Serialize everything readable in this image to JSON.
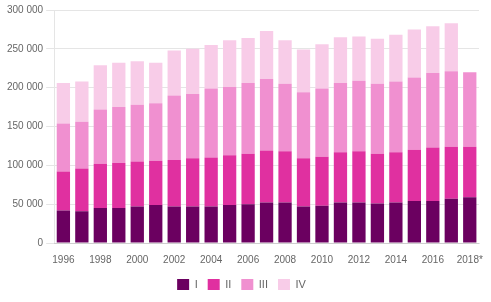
{
  "chart_data": {
    "type": "bar",
    "stacked": true,
    "categories": [
      "1996",
      null,
      "1998",
      null,
      "2000",
      null,
      "2002",
      null,
      "2004",
      null,
      "2006",
      null,
      "2008",
      null,
      "2010",
      null,
      "2012",
      null,
      "2014",
      null,
      "2016",
      null,
      "2018*"
    ],
    "series": [
      {
        "name": "I",
        "color": "#6b0060",
        "values": [
          42000,
          41000,
          45000,
          45000,
          47000,
          49000,
          47000,
          47000,
          47000,
          49000,
          50000,
          52000,
          52000,
          47000,
          48000,
          52000,
          52000,
          51000,
          52000,
          54000,
          54000,
          57000,
          59000
        ]
      },
      {
        "name": "II",
        "color": "#e030a0",
        "values": [
          50000,
          55000,
          57000,
          58000,
          58000,
          57000,
          60000,
          62000,
          63000,
          64000,
          65000,
          67000,
          66000,
          62000,
          63000,
          65000,
          66000,
          64000,
          65000,
          66000,
          69000,
          67000,
          65000
        ]
      },
      {
        "name": "III",
        "color": "#f090d0",
        "values": [
          62000,
          60000,
          70000,
          72000,
          73000,
          74000,
          83000,
          83000,
          89000,
          88000,
          91000,
          92000,
          87000,
          85000,
          88000,
          89000,
          91000,
          90000,
          91000,
          93000,
          96000,
          97000,
          96000
        ]
      },
      {
        "name": "IV",
        "color": "#f8cce8",
        "values": [
          52000,
          52000,
          57000,
          57000,
          56000,
          52000,
          58000,
          58000,
          56000,
          60000,
          58000,
          62000,
          56000,
          55000,
          57000,
          59000,
          57000,
          58000,
          60000,
          62000,
          60000,
          62000,
          0
        ]
      }
    ],
    "ylim": [
      0,
      300000
    ],
    "yticks": [
      0,
      {
        "value": 50000,
        "label": "50 000"
      },
      {
        "value": 100000,
        "label": "100 000"
      },
      {
        "value": 150000,
        "label": "150 000"
      },
      {
        "value": 200000,
        "label": "200 000"
      },
      {
        "value": 250000,
        "label": "250 000"
      },
      {
        "value": 300000,
        "label": "300 000"
      }
    ],
    "grid": true,
    "legend": "bottom"
  }
}
